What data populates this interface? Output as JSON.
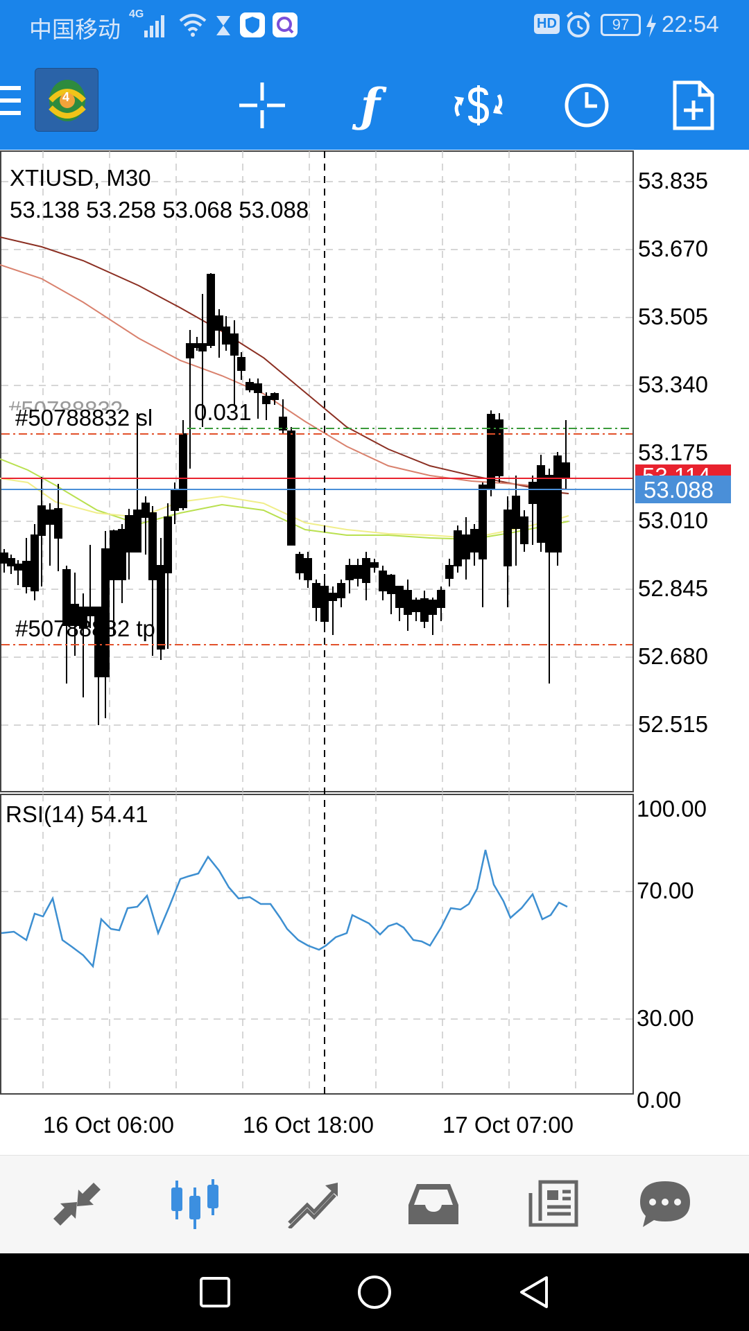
{
  "status_bar": {
    "carrier": "中国移动",
    "network": "4G",
    "battery": "97",
    "time": "22:54",
    "hd_badge": "HD",
    "icons": [
      "signal-icon",
      "wifi-icon",
      "hourglass-icon",
      "shield-app-icon",
      "search-app-icon",
      "alarm-icon",
      "battery-icon",
      "charging-icon"
    ]
  },
  "toolbar": {
    "icons": [
      "menu-icon",
      "app-logo-icon",
      "crosshair-icon",
      "indicators-icon",
      "symbols-icon",
      "timeframe-icon",
      "new-order-icon"
    ],
    "logo_badge": "4"
  },
  "chart": {
    "symbol_timeframe": "XTIUSD, M30",
    "ohlc": "53.138 53.258 53.068 53.088",
    "ask_price": "53.114",
    "bid_price": "53.088",
    "sl_label": "#50788832 sl",
    "sl_ghost": "#50788832",
    "sl_value": "0.031",
    "tp_label": "#50788832 tp",
    "price_axis": [
      "53.835",
      "53.670",
      "53.505",
      "53.340",
      "53.175",
      "53.010",
      "52.845",
      "52.680",
      "52.515"
    ],
    "time_axis": [
      "16 Oct 06:00",
      "16 Oct 18:00",
      "17 Oct 07:00"
    ],
    "rsi_label": "RSI(14) 54.41",
    "rsi_axis": [
      "100.00",
      "70.00",
      "30.00",
      "0.00"
    ],
    "colors": {
      "ask": "#e8222e",
      "bid": "#4a8fd8",
      "rsi": "#3d8fd1",
      "ma_slow": "#8b2f22",
      "ma_mid": "#d9816d",
      "ma_fast1": "#b9e04f",
      "ma_fast2": "#f0ee8a",
      "order_line": "#e2502a",
      "grid": "#c8c8c8"
    }
  },
  "bottom_nav": {
    "items": [
      "quotes-icon",
      "chart-icon",
      "trade-icon",
      "history-icon",
      "news-icon",
      "chat-icon"
    ],
    "active": "chart-icon"
  },
  "system_nav": {
    "items": [
      "recents-icon",
      "home-icon",
      "back-icon"
    ]
  }
}
